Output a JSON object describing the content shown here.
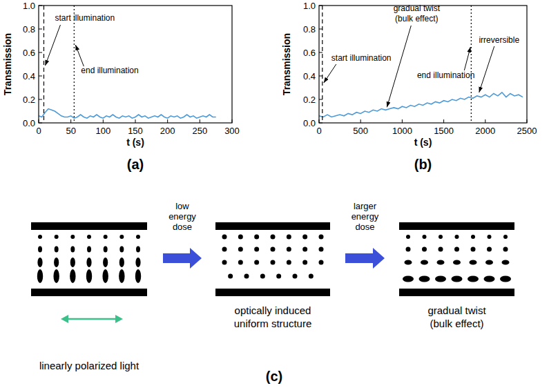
{
  "chart_data": [
    {
      "type": "line",
      "panel_label": "(a)",
      "x_label": "t (s)",
      "y_label": "Transmission",
      "color": "#4d9ad6",
      "x": [
        0,
        5,
        10,
        15,
        20,
        25,
        30,
        35,
        40,
        45,
        50,
        55,
        60,
        65,
        70,
        75,
        80,
        85,
        90,
        95,
        100,
        105,
        110,
        115,
        120,
        125,
        130,
        135,
        140,
        145,
        150,
        155,
        160,
        165,
        170,
        175,
        180,
        185,
        190,
        195,
        200,
        205,
        210,
        215,
        220,
        225,
        230,
        235,
        240,
        245,
        250,
        255,
        260,
        265,
        270,
        275
      ],
      "values": [
        0.06,
        0.05,
        0.09,
        0.12,
        0.11,
        0.1,
        0.08,
        0.06,
        0.05,
        0.05,
        0.06,
        0.04,
        0.05,
        0.07,
        0.05,
        0.04,
        0.06,
        0.05,
        0.07,
        0.05,
        0.04,
        0.06,
        0.05,
        0.07,
        0.05,
        0.04,
        0.06,
        0.05,
        0.06,
        0.04,
        0.05,
        0.07,
        0.05,
        0.06,
        0.04,
        0.05,
        0.06,
        0.05,
        0.07,
        0.05,
        0.04,
        0.06,
        0.05,
        0.06,
        0.04,
        0.05,
        0.07,
        0.05,
        0.06,
        0.04,
        0.05,
        0.06,
        0.05,
        0.07,
        0.05,
        0.05
      ],
      "xlim": [
        0,
        300
      ],
      "xticks": [
        0,
        50,
        100,
        150,
        200,
        250,
        300
      ],
      "ylim": [
        0,
        1
      ],
      "yticks": [
        {
          "value": 0,
          "label": "0.0"
        },
        0.2,
        0.4,
        0.6,
        0.8,
        {
          "value": 1,
          "label": "1.0"
        }
      ],
      "events": [
        {
          "label": "start illumination",
          "t": 8,
          "line_style": "dashed"
        },
        {
          "label": "end illumination",
          "t": 55,
          "line_style": "dotted"
        }
      ]
    },
    {
      "type": "line",
      "panel_label": "(b)",
      "x_label": "t (s)",
      "y_label": "Transmission",
      "color": "#4d9ad6",
      "x": [
        0,
        50,
        100,
        150,
        200,
        250,
        300,
        350,
        400,
        450,
        500,
        550,
        600,
        650,
        700,
        750,
        800,
        850,
        900,
        950,
        1000,
        1050,
        1100,
        1150,
        1200,
        1250,
        1300,
        1350,
        1400,
        1450,
        1500,
        1550,
        1600,
        1650,
        1700,
        1750,
        1800,
        1850,
        1900,
        1950,
        2000,
        2050,
        2100,
        2150,
        2200,
        2250,
        2300,
        2350,
        2400,
        2450
      ],
      "values": [
        0.06,
        0.05,
        0.07,
        0.05,
        0.06,
        0.07,
        0.06,
        0.08,
        0.07,
        0.09,
        0.08,
        0.1,
        0.09,
        0.11,
        0.1,
        0.12,
        0.11,
        0.12,
        0.13,
        0.12,
        0.14,
        0.13,
        0.15,
        0.14,
        0.16,
        0.15,
        0.17,
        0.16,
        0.18,
        0.17,
        0.19,
        0.18,
        0.2,
        0.19,
        0.21,
        0.2,
        0.22,
        0.21,
        0.23,
        0.22,
        0.24,
        0.22,
        0.25,
        0.23,
        0.26,
        0.22,
        0.25,
        0.23,
        0.24,
        0.22
      ],
      "xlim": [
        0,
        2500
      ],
      "xticks": [
        0,
        500,
        1000,
        1500,
        2000,
        2500
      ],
      "ylim": [
        0,
        1
      ],
      "yticks": [
        {
          "value": 0,
          "label": "0.0"
        },
        0.2,
        0.4,
        0.6,
        0.8,
        {
          "value": 1,
          "label": "1.0"
        }
      ],
      "events": [
        {
          "label": "start illumination",
          "t": 40,
          "line_style": "dashed"
        },
        {
          "label": "end illumination",
          "t": 1830,
          "line_style": "dotted"
        }
      ],
      "annotations": [
        {
          "text": "gradual twist (bulk effect)",
          "t": 800,
          "y": 0.11
        },
        {
          "text": "irreversible",
          "t": 1900,
          "y": 0.23
        }
      ]
    }
  ],
  "diagram": {
    "panel_label": "(c)",
    "stages": [
      {
        "label": "linearly polarized light"
      },
      {
        "label": "optically induced uniform structure"
      },
      {
        "label": "gradual twist (bulk effect)"
      }
    ],
    "arrows": [
      {
        "label": "low energy dose"
      },
      {
        "label": "larger energy dose"
      }
    ]
  }
}
